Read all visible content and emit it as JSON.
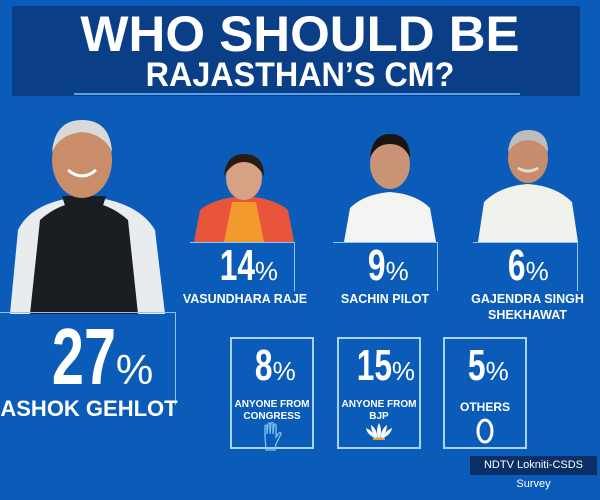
{
  "title": {
    "line1": "WHO SHOULD BE",
    "line2": "RAJASTHAN’S CM?"
  },
  "colors": {
    "background": "#0b5cb8",
    "title_band": "#0a3f88",
    "accent_line": "#4ea3ec",
    "text": "#ffffff"
  },
  "chart_data": {
    "type": "table",
    "title": "WHO SHOULD BE RAJASTHAN’S CM?",
    "categories": [
      "ASHOK GEHLOT",
      "VASUNDHARA RAJE",
      "SACHIN PILOT",
      "GAJENDRA SINGH SHEKHAWAT",
      "ANYONE FROM CONGRESS",
      "ANYONE FROM BJP",
      "OTHERS"
    ],
    "values": [
      27,
      14,
      9,
      6,
      8,
      15,
      5
    ],
    "unit": "%"
  },
  "candidates": [
    {
      "name": "ASHOK GEHLOT",
      "value": "27",
      "unit": "%",
      "icon": "person-photo"
    },
    {
      "name": "VASUNDHARA RAJE",
      "value": "14",
      "unit": "%",
      "icon": "person-photo"
    },
    {
      "name": "SACHIN PILOT",
      "value": "9",
      "unit": "%",
      "icon": "person-photo"
    },
    {
      "name_line1": "GAJENDRA SINGH",
      "name_line2": "SHEKHAWAT",
      "value": "6",
      "unit": "%",
      "icon": "person-photo"
    }
  ],
  "cards": [
    {
      "value": "8",
      "unit": "%",
      "line1": "ANYONE FROM",
      "line2": "CONGRESS",
      "icon": "congress-hand-icon"
    },
    {
      "value": "15",
      "unit": "%",
      "line1": "ANYONE FROM",
      "line2": "BJP",
      "icon": "bjp-lotus-icon"
    },
    {
      "value": "5",
      "unit": "%",
      "line1": "OTHERS",
      "line2": "",
      "icon": "others-circle-icon"
    }
  ],
  "source": "NDTV Lokniti-CSDS Survey"
}
